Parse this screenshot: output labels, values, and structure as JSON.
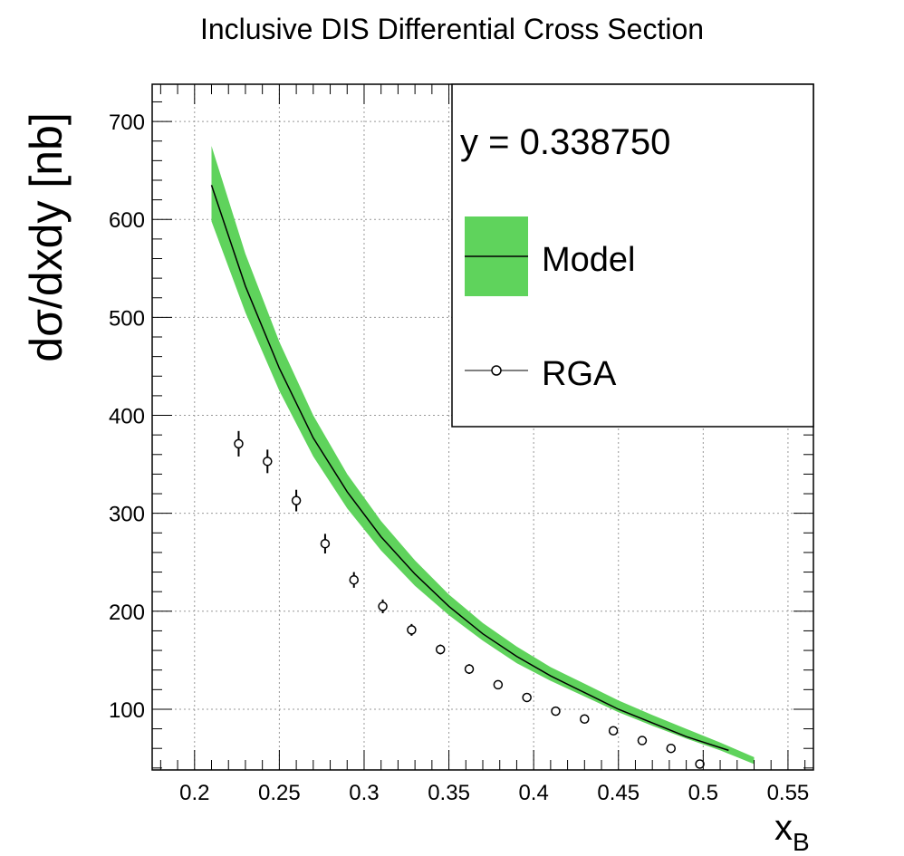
{
  "chart_data": {
    "type": "line",
    "title": "Inclusive DIS Differential Cross Section",
    "xlabel": "x",
    "xlabel_sub": "B",
    "ylabel": "dσ/dxdy [nb]",
    "xlim": [
      0.175,
      0.565
    ],
    "ylim": [
      38,
      738
    ],
    "x_ticks": [
      0.2,
      0.25,
      0.3,
      0.35,
      0.4,
      0.45,
      0.5,
      0.55
    ],
    "x_tick_labels": [
      "0.2",
      "0.25",
      "0.3",
      "0.35",
      "0.4",
      "0.45",
      "0.5",
      "0.55"
    ],
    "y_ticks": [
      100,
      200,
      300,
      400,
      500,
      600,
      700
    ],
    "y_tick_labels": [
      "100",
      "200",
      "300",
      "400",
      "500",
      "600",
      "700"
    ],
    "grid": true,
    "legend_placement": "top-right",
    "legend_header": "y = 0.338750",
    "colors": {
      "band": "#5fd35c",
      "line": "#000000",
      "marker": "#000000"
    },
    "series": [
      {
        "name": "Model",
        "style": "line-with-band",
        "x": [
          0.21,
          0.23,
          0.25,
          0.27,
          0.29,
          0.31,
          0.33,
          0.35,
          0.37,
          0.39,
          0.41,
          0.43,
          0.45,
          0.47,
          0.49,
          0.515
        ],
        "y": [
          635,
          532,
          448,
          377,
          322,
          276,
          238,
          205,
          177,
          154,
          134,
          117,
          100,
          86,
          72,
          58
        ],
        "band_x": [
          0.21,
          0.23,
          0.25,
          0.27,
          0.29,
          0.31,
          0.33,
          0.35,
          0.37,
          0.39,
          0.41,
          0.43,
          0.45,
          0.47,
          0.49,
          0.51,
          0.53
        ],
        "band_lower": [
          598,
          505,
          425,
          358,
          305,
          262,
          226,
          196,
          170,
          147,
          129,
          113,
          97,
          83,
          70,
          58,
          44
        ],
        "band_upper": [
          675,
          565,
          475,
          400,
          340,
          292,
          252,
          217,
          188,
          164,
          143,
          126,
          109,
          94,
          80,
          66,
          51
        ]
      },
      {
        "name": "RGA",
        "style": "markers",
        "x": [
          0.226,
          0.243,
          0.26,
          0.277,
          0.294,
          0.311,
          0.328,
          0.345,
          0.362,
          0.379,
          0.396,
          0.413,
          0.43,
          0.447,
          0.464,
          0.481,
          0.498
        ],
        "y": [
          371,
          353,
          313,
          269,
          232,
          205,
          181,
          161,
          141,
          125,
          112,
          98,
          90,
          78,
          68,
          60,
          44
        ],
        "err": [
          13,
          12,
          11,
          10,
          8,
          7,
          6,
          5,
          5,
          4,
          4,
          3,
          3,
          3,
          2,
          2,
          2
        ]
      }
    ]
  }
}
